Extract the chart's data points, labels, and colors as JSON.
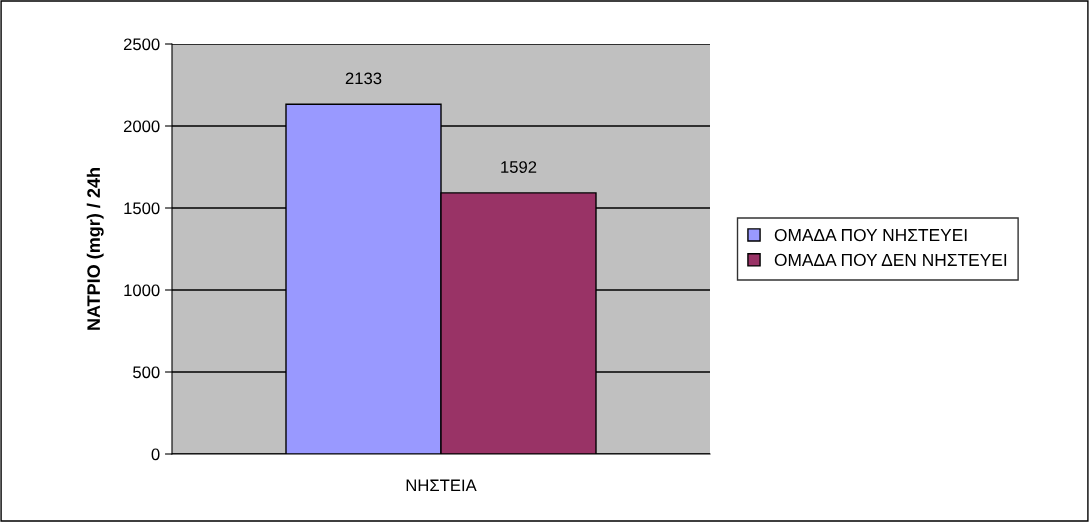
{
  "chart_data": {
    "type": "bar",
    "ylabel": "ΝΑΤΡΙΟ (mgr) / 24h",
    "categories": [
      "ΝΗΣΤΕΙΑ"
    ],
    "series": [
      {
        "name": "ΟΜΑΔΑ ΠΟΥ ΝΗΣΤΕΥΕΙ",
        "color": "#9999ff",
        "values": [
          2133
        ]
      },
      {
        "name": "ΟΜΑΔΑ ΠΟΥ ΔΕΝ ΝΗΣΤΕΥΕΙ",
        "color": "#993366",
        "values": [
          1592
        ]
      }
    ],
    "ylim": [
      0,
      2500
    ],
    "yticks": [
      0,
      500,
      1000,
      1500,
      2000,
      2500
    ],
    "grid": "y",
    "legend": "right",
    "data_labels": true
  }
}
